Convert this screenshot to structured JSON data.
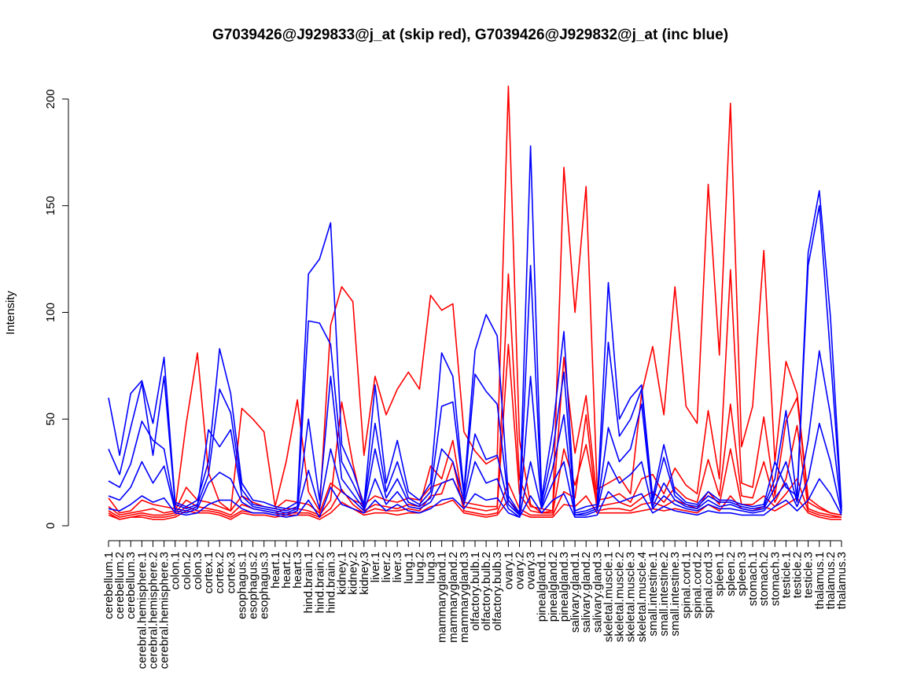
{
  "chart_data": {
    "type": "line",
    "title": "G7039426@J929833@j_at (skip red), G7039426@J929832@j_at (inc blue)",
    "xlabel": "",
    "ylabel": "Intensity",
    "ylim": [
      0,
      200
    ],
    "yticks": [
      0,
      50,
      100,
      150,
      200
    ],
    "categories": [
      "cerebellum.1",
      "cerebellum.2",
      "cerebellum.3",
      "cerebral.hemisphere.1",
      "cerebral.hemisphere.2",
      "cerebral.hemisphere.3",
      "colon.1",
      "colon.2",
      "colon.3",
      "cortex.1",
      "cortex.2",
      "cortex.3",
      "esophagus.1",
      "esophagus.2",
      "esophagus.3",
      "heart.1",
      "heart.2",
      "heart.3",
      "hind.brain.1",
      "hind.brain.2",
      "hind.brain.3",
      "kidney.1",
      "kidney.2",
      "kidney.3",
      "liver.1",
      "liver.2",
      "liver.3",
      "lung.1",
      "lung.2",
      "lung.3",
      "mammarygland.1",
      "mammarygland.2",
      "mammarygland.3",
      "olfactory.bulb.1",
      "olfactory.bulb.2",
      "olfactory.bulb.3",
      "ovary.1",
      "ovary.2",
      "ovary.3",
      "pinealgland.1",
      "pinealgland.2",
      "pinealgland.3",
      "salivary.gland.1",
      "salivary.gland.2",
      "salivary.gland.3",
      "skeletal.muscle.1",
      "skeletal.muscle.2",
      "skeletal.muscle.3",
      "skeletal.muscle.4",
      "small.intestine.1",
      "small.intestine.2",
      "small.intestine.3",
      "spinal.cord.1",
      "spinal.cord.2",
      "spinal.cord.3",
      "spleen.1",
      "spleen.2",
      "spleen.3",
      "stomach.1",
      "stomach.2",
      "stomach.3",
      "testicle.1",
      "testicle.2",
      "testicle.3",
      "thalamus.1",
      "thalamus.2",
      "thalamus.3"
    ],
    "series": [
      {
        "color": "#ff0000",
        "values": [
          13,
          6,
          7,
          12,
          10,
          9,
          8,
          48,
          81,
          25,
          11,
          7,
          55,
          50,
          44,
          9,
          30,
          59,
          16,
          7,
          94,
          112,
          105,
          33,
          70,
          52,
          64,
          72,
          64,
          108,
          101,
          104,
          44,
          35,
          29,
          32,
          206,
          40,
          10,
          6,
          7,
          168,
          100,
          159,
          17,
          20,
          23,
          15,
          62,
          84,
          52,
          112,
          56,
          48,
          160,
          80,
          198,
          37,
          56,
          129,
          30,
          77,
          62,
          13,
          9,
          6,
          5
        ]
      },
      {
        "color": "#ff0000",
        "values": [
          9,
          5,
          6,
          7,
          8,
          6,
          7,
          18,
          12,
          11,
          9,
          7,
          14,
          11,
          9,
          8,
          12,
          11,
          10,
          6,
          20,
          16,
          12,
          10,
          14,
          12,
          11,
          13,
          12,
          18,
          20,
          22,
          11,
          10,
          9,
          9,
          118,
          22,
          9,
          8,
          7,
          79,
          34,
          61,
          12,
          13,
          15,
          11,
          22,
          24,
          15,
          27,
          19,
          15,
          54,
          22,
          120,
          20,
          18,
          51,
          14,
          49,
          60,
          11,
          8,
          6,
          5
        ]
      },
      {
        "color": "#ff0000",
        "values": [
          7,
          4,
          5,
          6,
          5,
          5,
          6,
          12,
          9,
          8,
          7,
          5,
          10,
          8,
          7,
          6,
          8,
          8,
          7,
          5,
          12,
          58,
          29,
          7,
          10,
          9,
          8,
          10,
          9,
          28,
          22,
          40,
          9,
          8,
          7,
          8,
          85,
          15,
          7,
          6,
          6,
          36,
          19,
          38,
          9,
          10,
          11,
          9,
          13,
          16,
          11,
          18,
          13,
          11,
          31,
          14,
          57,
          14,
          13,
          30,
          11,
          22,
          47,
          8,
          6,
          5,
          4
        ]
      },
      {
        "color": "#ff0000",
        "values": [
          6,
          3,
          4,
          5,
          4,
          4,
          5,
          9,
          7,
          7,
          6,
          4,
          7,
          6,
          6,
          5,
          6,
          6,
          6,
          4,
          8,
          17,
          10,
          6,
          8,
          7,
          7,
          8,
          7,
          14,
          15,
          30,
          7,
          6,
          5,
          6,
          20,
          8,
          5,
          5,
          5,
          16,
          13,
          52,
          7,
          8,
          8,
          7,
          10,
          11,
          9,
          12,
          10,
          8,
          16,
          10,
          36,
          10,
          10,
          14,
          9,
          15,
          22,
          7,
          5,
          4,
          4
        ]
      },
      {
        "color": "#ff0000",
        "values": [
          5,
          3,
          4,
          4,
          3,
          3,
          4,
          7,
          6,
          6,
          5,
          3,
          6,
          5,
          5,
          4,
          5,
          5,
          5,
          3,
          6,
          11,
          8,
          5,
          6,
          6,
          5,
          6,
          6,
          9,
          10,
          12,
          6,
          5,
          4,
          5,
          12,
          6,
          4,
          4,
          4,
          10,
          9,
          14,
          6,
          6,
          6,
          6,
          7,
          8,
          7,
          8,
          7,
          6,
          10,
          7,
          14,
          8,
          7,
          9,
          7,
          10,
          13,
          6,
          4,
          3,
          3
        ]
      },
      {
        "color": "#0000ff",
        "values": [
          60,
          33,
          62,
          68,
          48,
          79,
          11,
          9,
          12,
          30,
          83,
          62,
          20,
          12,
          11,
          9,
          8,
          11,
          118,
          125,
          142,
          38,
          26,
          10,
          66,
          20,
          40,
          16,
          12,
          20,
          81,
          70,
          16,
          82,
          99,
          89,
          14,
          6,
          178,
          13,
          45,
          91,
          7,
          9,
          10,
          114,
          50,
          60,
          66,
          13,
          38,
          16,
          11,
          10,
          16,
          12,
          12,
          10,
          9,
          10,
          30,
          18,
          14,
          128,
          157,
          98,
          9
        ]
      },
      {
        "color": "#0000ff",
        "values": [
          36,
          24,
          46,
          67,
          33,
          70,
          10,
          8,
          10,
          24,
          64,
          53,
          17,
          10,
          9,
          8,
          7,
          9,
          96,
          95,
          85,
          30,
          20,
          9,
          48,
          16,
          30,
          13,
          10,
          16,
          56,
          58,
          14,
          71,
          63,
          57,
          12,
          5,
          122,
          11,
          35,
          72,
          6,
          7,
          9,
          86,
          42,
          50,
          64,
          11,
          32,
          14,
          10,
          9,
          14,
          11,
          11,
          9,
          8,
          9,
          22,
          54,
          12,
          122,
          150,
          80,
          8
        ]
      },
      {
        "color": "#0000ff",
        "values": [
          21,
          18,
          29,
          49,
          40,
          36,
          8,
          7,
          9,
          45,
          37,
          45,
          14,
          9,
          8,
          7,
          6,
          8,
          50,
          12,
          70,
          22,
          15,
          8,
          36,
          13,
          22,
          11,
          9,
          13,
          36,
          30,
          12,
          43,
          31,
          33,
          10,
          5,
          70,
          9,
          27,
          52,
          5,
          6,
          8,
          46,
          30,
          36,
          57,
          9,
          20,
          12,
          9,
          8,
          12,
          9,
          10,
          8,
          7,
          8,
          18,
          30,
          11,
          40,
          82,
          52,
          7
        ]
      },
      {
        "color": "#0000ff",
        "values": [
          14,
          12,
          18,
          30,
          20,
          28,
          7,
          6,
          8,
          20,
          25,
          22,
          11,
          8,
          7,
          6,
          5,
          7,
          26,
          8,
          36,
          16,
          12,
          7,
          22,
          10,
          16,
          9,
          8,
          11,
          20,
          22,
          10,
          30,
          20,
          22,
          8,
          4,
          30,
          8,
          20,
          30,
          5,
          5,
          7,
          30,
          20,
          24,
          30,
          8,
          14,
          10,
          8,
          7,
          10,
          8,
          8,
          7,
          6,
          7,
          13,
          20,
          9,
          22,
          48,
          30,
          6
        ]
      },
      {
        "color": "#0000ff",
        "values": [
          8,
          7,
          10,
          14,
          11,
          13,
          6,
          5,
          6,
          10,
          12,
          12,
          8,
          6,
          6,
          5,
          4,
          5,
          12,
          4,
          18,
          10,
          8,
          6,
          12,
          7,
          10,
          7,
          6,
          8,
          12,
          13,
          8,
          15,
          12,
          13,
          6,
          4,
          14,
          6,
          12,
          15,
          4,
          4,
          5,
          16,
          11,
          13,
          15,
          6,
          9,
          7,
          6,
          5,
          7,
          6,
          6,
          5,
          5,
          5,
          9,
          12,
          7,
          12,
          22,
          15,
          5
        ]
      }
    ]
  }
}
